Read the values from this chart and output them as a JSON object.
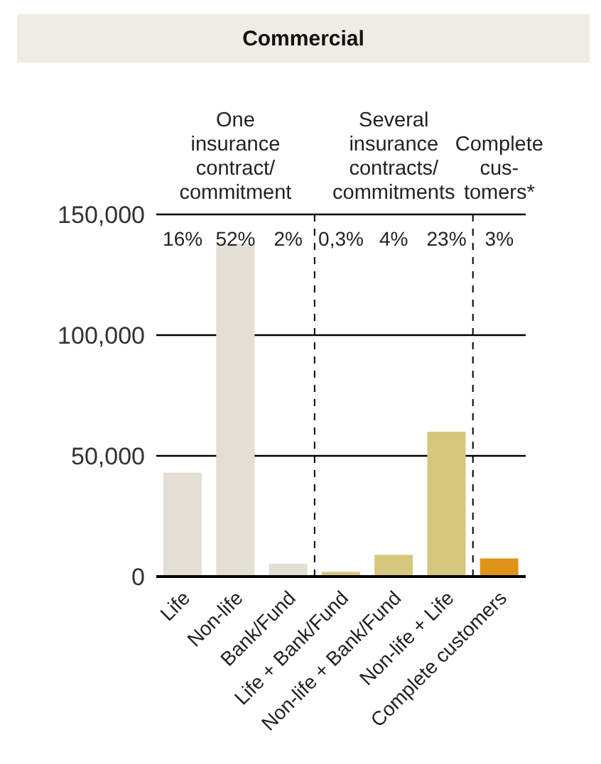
{
  "chart_data": {
    "type": "bar",
    "title": "Commercial",
    "categories": [
      "Life",
      "Non-life",
      "Bank/Fund",
      "Life + Bank/Fund",
      "Non-life + Bank/Fund",
      "Non-life + Life",
      "Complete customers"
    ],
    "values": [
      43000,
      138000,
      5300,
      2000,
      9000,
      60000,
      7500
    ],
    "colors": [
      "#e3dfd4",
      "#e3dfd4",
      "#e3dfd4",
      "#d6c77e",
      "#d6c77e",
      "#d6c77e",
      "#df9318"
    ],
    "ylim": [
      0,
      150000
    ],
    "yticks": [
      {
        "value": 0,
        "label": "0"
      },
      {
        "value": 50000,
        "label": "50,000"
      },
      {
        "value": 100000,
        "label": "100,000"
      },
      {
        "value": 150000,
        "label": "150,000"
      }
    ],
    "grid": "y",
    "annotations": [
      "One\ninsurance\ncontract/\ncommitment",
      "Several\ninsurance\ncontracts/\ncommitments",
      "Complete\ncus-\ntomers*",
      "16%",
      "52%",
      "2%",
      "0,3%",
      "4%",
      "23%",
      "3%"
    ],
    "legend": false
  }
}
